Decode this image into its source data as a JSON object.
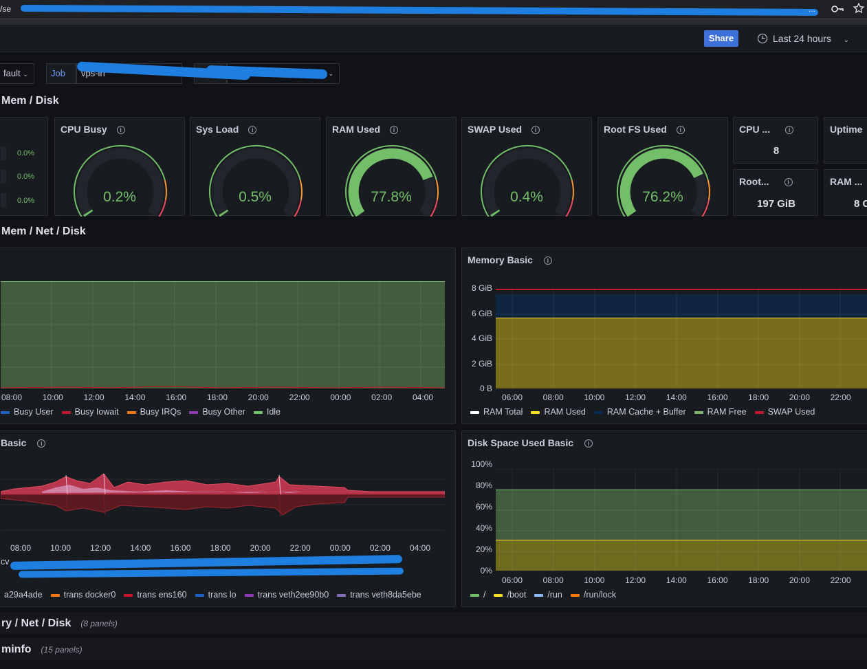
{
  "browser": {
    "url": "/se",
    "url_suffix": "...",
    "key_icon": "key-icon",
    "star_icon": "star-icon"
  },
  "toolbar": {
    "share_label": "Share",
    "time_range": "Last 24 hours"
  },
  "variables": [
    {
      "label": "",
      "value": "fault"
    },
    {
      "label": "Job",
      "value": "vps-in"
    },
    {
      "label": "Hos",
      "value": ""
    }
  ],
  "sections": {
    "quick": "Mem / Disk",
    "basic": "Mem / Net / Disk",
    "detail": "ry / Net / Disk",
    "detail_count": "(8 panels)",
    "meminfo": "minfo",
    "meminfo_count": "(15 panels)"
  },
  "partial_pcts": [
    "0.0%",
    "0.0%",
    "0.0%"
  ],
  "gauges": [
    {
      "title": "CPU Busy",
      "value": "0.2%",
      "fraction": 0.002,
      "color": "#73bf69"
    },
    {
      "title": "Sys Load",
      "value": "0.5%",
      "fraction": 0.005,
      "color": "#73bf69"
    },
    {
      "title": "RAM Used",
      "value": "77.8%",
      "fraction": 0.778,
      "color": "#73bf69"
    },
    {
      "title": "SWAP Used",
      "value": "0.4%",
      "fraction": 0.004,
      "color": "#73bf69"
    },
    {
      "title": "Root FS Used",
      "value": "76.2%",
      "fraction": 0.762,
      "color": "#73bf69"
    }
  ],
  "stats": [
    {
      "title": "CPU ...",
      "value": "8"
    },
    {
      "title": "Uptime",
      "value": ""
    },
    {
      "title": "Root...",
      "value": "197 GiB"
    },
    {
      "title": "RAM ...",
      "value": "8 G"
    }
  ],
  "cpu_panel": {
    "title": "",
    "x_ticks": [
      "08:00",
      "10:00",
      "12:00",
      "14:00",
      "16:00",
      "18:00",
      "20:00",
      "22:00",
      "00:00",
      "02:00",
      "04:00"
    ],
    "legend": [
      {
        "name": "Busy User",
        "color": "#1f60c4"
      },
      {
        "name": "Busy Iowait",
        "color": "#c4162a"
      },
      {
        "name": "Busy IRQs",
        "color": "#ff780a"
      },
      {
        "name": "Busy Other",
        "color": "#8f3bb8"
      },
      {
        "name": "Idle",
        "color": "#73bf69"
      }
    ]
  },
  "memory_panel": {
    "title": "Memory Basic",
    "y_ticks": [
      "8 GiB",
      "6 GiB",
      "4 GiB",
      "2 GiB",
      "0 B"
    ],
    "x_ticks": [
      "06:00",
      "08:00",
      "10:00",
      "12:00",
      "14:00",
      "16:00",
      "18:00",
      "20:00",
      "22:00"
    ],
    "legend": [
      {
        "name": "RAM Total",
        "color": "#ffffff"
      },
      {
        "name": "RAM Used",
        "color": "#fade2a"
      },
      {
        "name": "RAM Cache + Buffer",
        "color": "#052b51"
      },
      {
        "name": "RAM Free",
        "color": "#7eb26d"
      },
      {
        "name": "SWAP Used",
        "color": "#c4162a"
      }
    ]
  },
  "network_panel": {
    "title": "Basic",
    "x_ticks": [
      "08:00",
      "10:00",
      "12:00",
      "14:00",
      "16:00",
      "18:00",
      "20:00",
      "22:00",
      "00:00",
      "02:00",
      "04:00"
    ],
    "legend_row1_partial": "cv",
    "legend": [
      {
        "name": "a29a4ade",
        "color": "#e0a0c0"
      },
      {
        "name": "trans docker0",
        "color": "#ff780a"
      },
      {
        "name": "trans ens160",
        "color": "#c4162a"
      },
      {
        "name": "trans lo",
        "color": "#1f60c4"
      },
      {
        "name": "trans veth2ee90b0",
        "color": "#8f3bb8"
      },
      {
        "name": "trans veth8da5ebe",
        "color": "#806eb7"
      }
    ]
  },
  "disk_panel": {
    "title": "Disk Space Used Basic",
    "y_ticks": [
      "100%",
      "80%",
      "60%",
      "40%",
      "20%",
      "0%"
    ],
    "x_ticks": [
      "06:00",
      "08:00",
      "10:00",
      "12:00",
      "14:00",
      "16:00",
      "18:00",
      "20:00",
      "22:00"
    ],
    "legend": [
      {
        "name": "/",
        "color": "#73bf69"
      },
      {
        "name": "/boot",
        "color": "#fade2a"
      },
      {
        "name": "/run",
        "color": "#8ab8ff"
      },
      {
        "name": "/run/lock",
        "color": "#ff780a"
      }
    ]
  }
}
